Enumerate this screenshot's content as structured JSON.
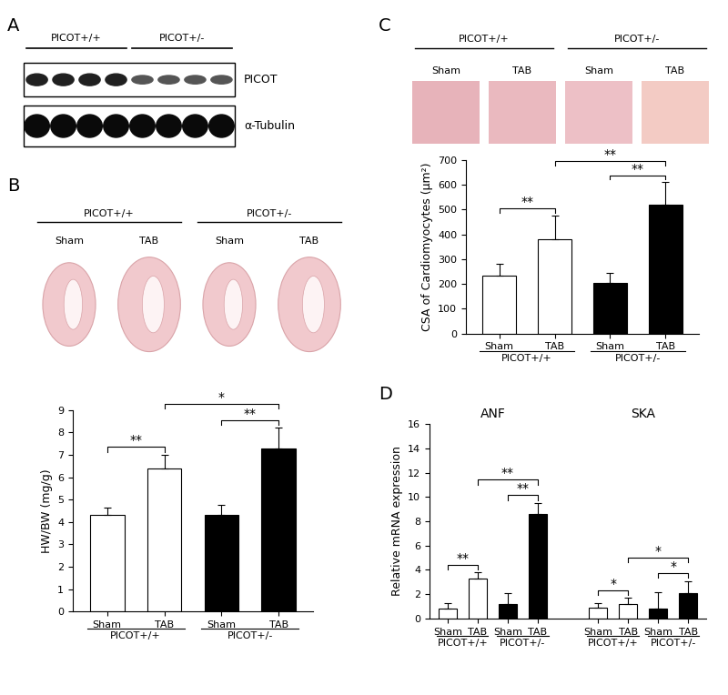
{
  "panel_labels": [
    "A",
    "B",
    "C",
    "D"
  ],
  "blot": {
    "groups": [
      "PICOT+/+",
      "PICOT+/-"
    ],
    "rows": [
      "PICOT",
      "α-Tubulin"
    ]
  },
  "chart_data": [
    {
      "type": "bar",
      "categories": [
        "Sham",
        "TAB",
        "Sham",
        "TAB"
      ],
      "genotypes": [
        "PICOT+/+",
        "PICOT+/-"
      ],
      "ylabel": "HW/BW (mg/g)",
      "values": [
        4.3,
        6.4,
        4.3,
        7.3
      ],
      "errors": [
        0.35,
        0.6,
        0.45,
        0.9
      ],
      "colors": [
        "#ffffff",
        "#ffffff",
        "#000000",
        "#000000"
      ],
      "ylim": [
        0,
        9
      ],
      "yticks": [
        0,
        1,
        2,
        3,
        4,
        5,
        6,
        7,
        8,
        9
      ],
      "significance": [
        {
          "pair": [
            0,
            1
          ],
          "label": "**"
        },
        {
          "pair": [
            2,
            3
          ],
          "label": "**"
        },
        {
          "pair": [
            1,
            3
          ],
          "label": "*"
        }
      ]
    },
    {
      "type": "bar",
      "categories": [
        "Sham",
        "TAB",
        "Sham",
        "TAB"
      ],
      "genotypes": [
        "PICOT+/+",
        "PICOT+/-"
      ],
      "ylabel": "CSA of Cardiomyocytes (μm²)",
      "values": [
        235,
        380,
        205,
        520
      ],
      "errors": [
        45,
        95,
        40,
        90
      ],
      "colors": [
        "#ffffff",
        "#ffffff",
        "#000000",
        "#000000"
      ],
      "ylim": [
        0,
        700
      ],
      "yticks": [
        0,
        100,
        200,
        300,
        400,
        500,
        600,
        700
      ],
      "significance": [
        {
          "pair": [
            0,
            1
          ],
          "label": "**"
        },
        {
          "pair": [
            2,
            3
          ],
          "label": "**"
        },
        {
          "pair": [
            1,
            3
          ],
          "label": "**"
        }
      ]
    },
    {
      "type": "bar",
      "categories": [
        "Sham",
        "TAB",
        "Sham",
        "TAB"
      ],
      "genotypes": [
        "PICOT+/+",
        "PICOT+/-"
      ],
      "ylabel": "Relative mRNA expression",
      "colors": [
        "#ffffff",
        "#ffffff",
        "#000000",
        "#000000"
      ],
      "ylim": [
        0,
        16
      ],
      "yticks": [
        0,
        2,
        4,
        6,
        8,
        10,
        12,
        14,
        16
      ],
      "groups": [
        {
          "name": "ANF",
          "values": [
            0.8,
            3.3,
            1.2,
            8.6
          ],
          "errors": [
            0.5,
            0.5,
            0.9,
            0.9
          ],
          "significance": [
            {
              "pair": [
                0,
                1
              ],
              "label": "**"
            },
            {
              "pair": [
                2,
                3
              ],
              "label": "**"
            },
            {
              "pair": [
                1,
                3
              ],
              "label": "**"
            }
          ]
        },
        {
          "name": "SKA",
          "values": [
            0.9,
            1.2,
            0.8,
            2.1
          ],
          "errors": [
            0.4,
            0.5,
            1.4,
            1.0
          ],
          "significance": [
            {
              "pair": [
                0,
                1
              ],
              "label": "*"
            },
            {
              "pair": [
                2,
                3
              ],
              "label": "*"
            },
            {
              "pair": [
                1,
                3
              ],
              "label": "*"
            }
          ]
        }
      ]
    }
  ]
}
